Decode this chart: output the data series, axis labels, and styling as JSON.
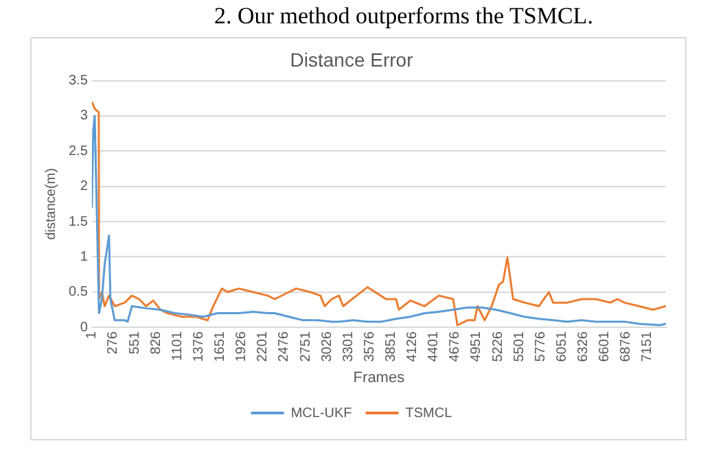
{
  "chart_data": {
    "type": "line",
    "title": "Distance Error",
    "annotations": [
      "2. Our method outperforms the TSMCL."
    ],
    "xlabel": "Frames",
    "ylabel": "distance(m)",
    "xlim": [
      1,
      7390
    ],
    "xticks": [
      1,
      276,
      551,
      826,
      1101,
      1376,
      1651,
      1926,
      2201,
      2476,
      2751,
      3026,
      3301,
      3576,
      3851,
      4126,
      4401,
      4676,
      4951,
      5226,
      5501,
      5776,
      6051,
      6326,
      6601,
      6876,
      7151
    ],
    "ylim": [
      0,
      3.5
    ],
    "yticks": [
      0,
      0.5,
      1,
      1.5,
      2,
      2.5,
      3,
      3.5
    ],
    "grid": "y",
    "legend": "bottom",
    "series": [
      {
        "name": "MCL-UKF",
        "color": "#5b9bd5",
        "x": [
          1,
          19,
          38,
          93,
          130,
          166,
          222,
          240,
          295,
          424,
          461,
          516,
          699,
          883,
          1067,
          1251,
          1435,
          1618,
          1894,
          2078,
          2262,
          2354,
          2537,
          2721,
          2905,
          3089,
          3181,
          3365,
          3548,
          3732,
          3916,
          4100,
          4284,
          4467,
          4651,
          4835,
          5019,
          5202,
          5386,
          5570,
          5754,
          5938,
          6122,
          6305,
          6489,
          6673,
          6857,
          7040,
          7316,
          7390
        ],
        "values": [
          1.7,
          2.8,
          3.0,
          0.2,
          0.4,
          0.9,
          1.3,
          0.4,
          0.1,
          0.1,
          0.08,
          0.3,
          0.27,
          0.25,
          0.2,
          0.18,
          0.15,
          0.2,
          0.2,
          0.22,
          0.2,
          0.2,
          0.15,
          0.1,
          0.1,
          0.08,
          0.08,
          0.1,
          0.08,
          0.08,
          0.12,
          0.15,
          0.2,
          0.22,
          0.25,
          0.28,
          0.28,
          0.25,
          0.2,
          0.15,
          0.12,
          0.1,
          0.08,
          0.1,
          0.08,
          0.08,
          0.08,
          0.05,
          0.03,
          0.05
        ]
      },
      {
        "name": "TSMCL",
        "color": "#ed7d31",
        "x": [
          1,
          38,
          90,
          93,
          130,
          166,
          222,
          295,
          424,
          516,
          608,
          699,
          791,
          883,
          975,
          1159,
          1343,
          1490,
          1563,
          1674,
          1747,
          1894,
          2078,
          2262,
          2354,
          2537,
          2629,
          2813,
          2942,
          2997,
          3089,
          3181,
          3236,
          3548,
          3787,
          3916,
          3953,
          4100,
          4284,
          4467,
          4651,
          4706,
          4835,
          4927,
          4964,
          5056,
          5147,
          5239,
          5294,
          5349,
          5423,
          5570,
          5754,
          5883,
          5938,
          6122,
          6305,
          6489,
          6673,
          6765,
          6857,
          7040,
          7224,
          7390
        ],
        "values": [
          3.2,
          3.1,
          3.05,
          0.4,
          0.5,
          0.3,
          0.45,
          0.3,
          0.35,
          0.45,
          0.4,
          0.3,
          0.38,
          0.25,
          0.2,
          0.15,
          0.15,
          0.1,
          0.3,
          0.55,
          0.5,
          0.55,
          0.5,
          0.45,
          0.4,
          0.5,
          0.55,
          0.5,
          0.45,
          0.3,
          0.4,
          0.45,
          0.3,
          0.57,
          0.4,
          0.4,
          0.25,
          0.38,
          0.3,
          0.45,
          0.4,
          0.03,
          0.1,
          0.1,
          0.3,
          0.1,
          0.3,
          0.6,
          0.65,
          0.99,
          0.4,
          0.35,
          0.3,
          0.5,
          0.35,
          0.35,
          0.4,
          0.4,
          0.35,
          0.4,
          0.35,
          0.3,
          0.25,
          0.3
        ]
      }
    ]
  }
}
